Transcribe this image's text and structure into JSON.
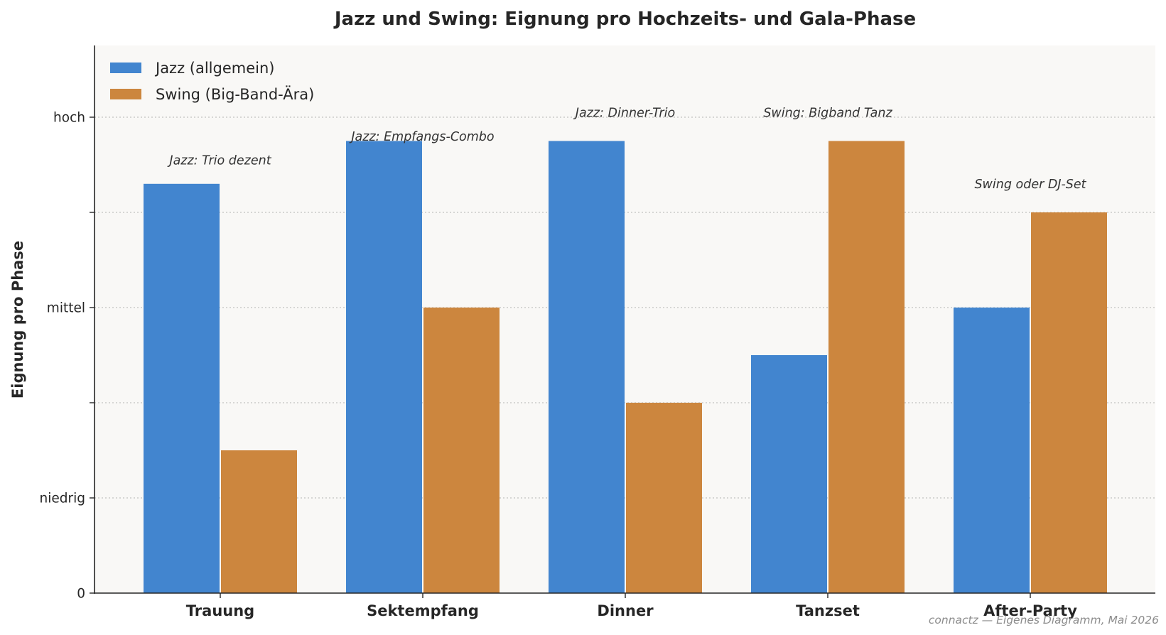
{
  "chart_data": {
    "type": "bar",
    "title": "Jazz und Swing: Eignung pro Hochzeits- und Gala-Phase",
    "xlabel": "",
    "ylabel": "Eignung pro Phase",
    "categories": [
      "Trauung",
      "Sektempfang",
      "Dinner",
      "Tanzset",
      "After-Party"
    ],
    "series": [
      {
        "name": "Jazz (allgemein)",
        "color": "#4285cf",
        "values": [
          4.3,
          4.75,
          4.75,
          2.5,
          3.0
        ]
      },
      {
        "name": "Swing (Big-Band-Ära)",
        "color": "#cc863e",
        "values": [
          1.5,
          3.0,
          2.0,
          4.75,
          4.0
        ]
      }
    ],
    "ylim": [
      0,
      5
    ],
    "yticks": [
      {
        "value": 0,
        "label": "0"
      },
      {
        "value": 1,
        "label": "niedrig"
      },
      {
        "value": 2,
        "label": ""
      },
      {
        "value": 3,
        "label": "mittel"
      },
      {
        "value": 4,
        "label": ""
      },
      {
        "value": 5,
        "label": "hoch"
      }
    ],
    "grid": true,
    "legend_position": "top-left",
    "annotations": [
      {
        "category": "Trauung",
        "value": 4.55,
        "text": "Jazz: Trio dezent"
      },
      {
        "category": "Sektempfang",
        "value": 4.8,
        "text": "Jazz: Empfangs-Combo"
      },
      {
        "category": "Dinner",
        "value": 5.05,
        "text": "Jazz: Dinner-Trio"
      },
      {
        "category": "Tanzset",
        "value": 5.05,
        "text": "Swing: Bigband Tanz"
      },
      {
        "category": "After-Party",
        "value": 4.3,
        "text": "Swing oder DJ-Set"
      }
    ],
    "footer": "connactz — Eigenes Diagramm, Mai 2026"
  }
}
